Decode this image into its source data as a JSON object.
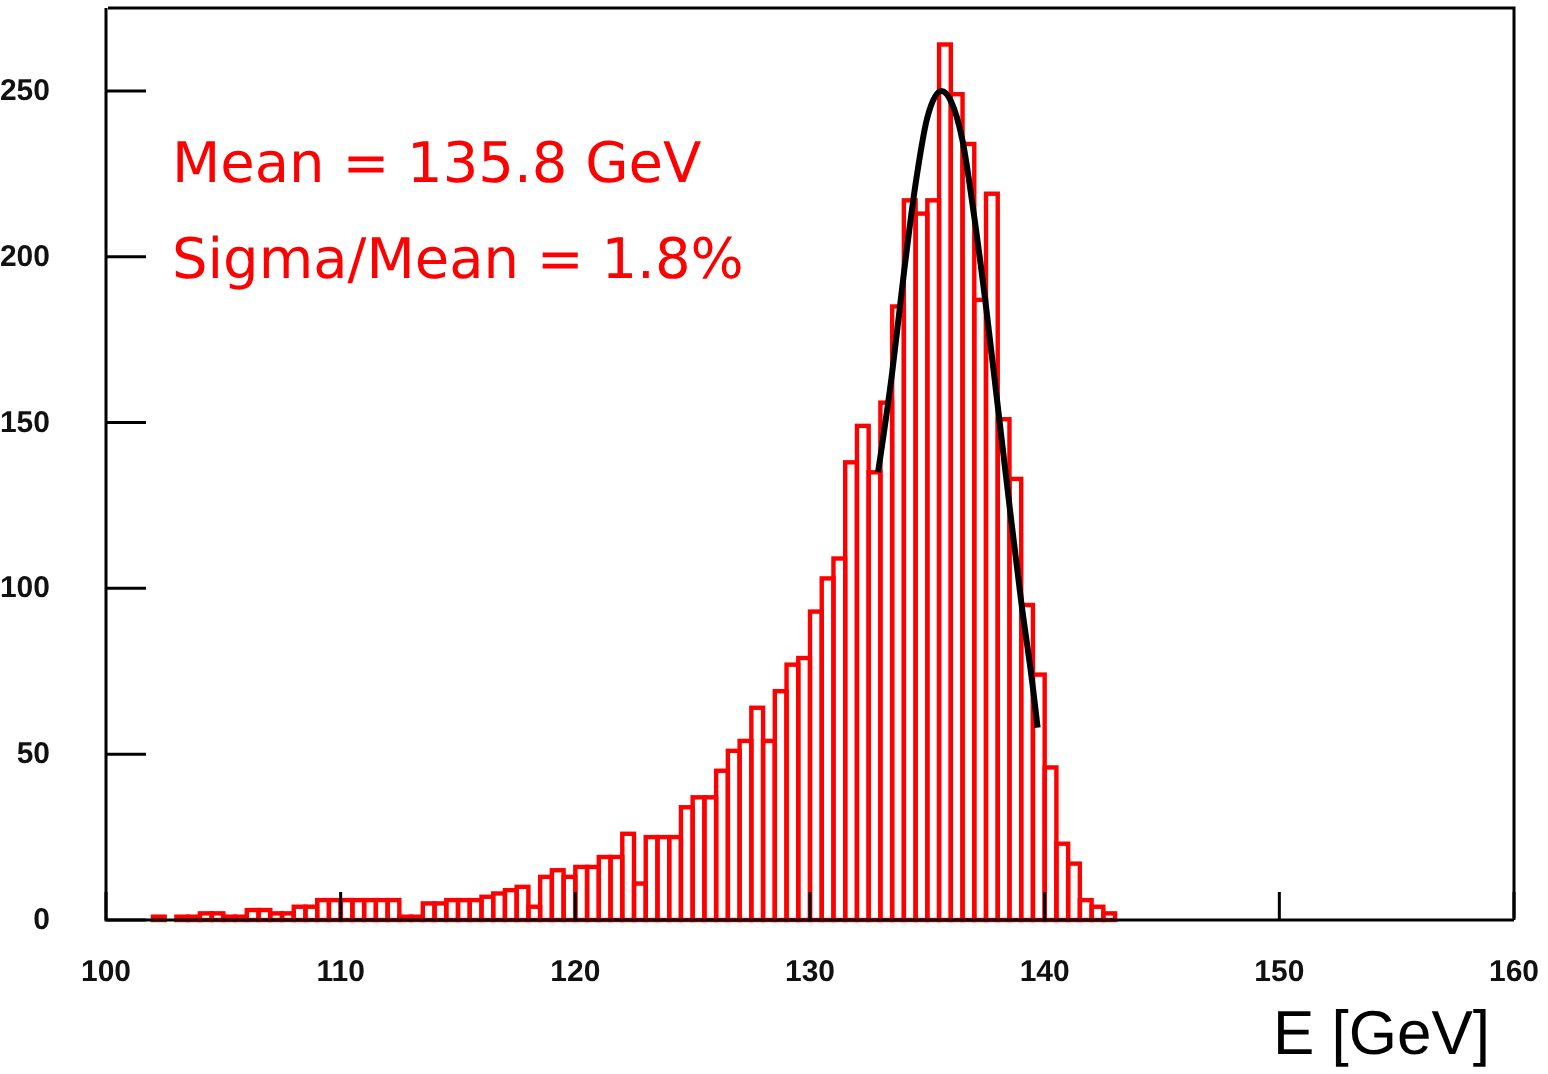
{
  "chart_data": {
    "type": "histogram",
    "xlabel": "E [GeV]",
    "annotations": [
      "Mean = 135.8 GeV",
      "Sigma/Mean = 1.8%"
    ],
    "bins": [
      100,
      100.5,
      101,
      101.5,
      102,
      102.5,
      103,
      103.5,
      104,
      104.5,
      105,
      105.5,
      106,
      106.5,
      107,
      107.5,
      108,
      108.5,
      109,
      109.5,
      110,
      110.5,
      111,
      111.5,
      112,
      112.5,
      113,
      113.5,
      114,
      114.5,
      115,
      115.5,
      116,
      116.5,
      117,
      117.5,
      118,
      118.5,
      119,
      119.5,
      120,
      120.5,
      121,
      121.5,
      122,
      122.5,
      123,
      123.5,
      124,
      124.5,
      125,
      125.5,
      126,
      126.5,
      127,
      127.5,
      128,
      128.5,
      129,
      129.5,
      130,
      130.5,
      131,
      131.5,
      132,
      132.5,
      133,
      133.5,
      134,
      134.5,
      135,
      135.5,
      136,
      136.5,
      137,
      137.5,
      138,
      138.5,
      139,
      139.5,
      140,
      140.5,
      141,
      141.5,
      142,
      142.5,
      143,
      143.5,
      144,
      144.5,
      145,
      145.5,
      146,
      146.5,
      147,
      147.5,
      148,
      148.5,
      149,
      149.5,
      150,
      150.5,
      151,
      151.5,
      152,
      152.5,
      153,
      153.5,
      154,
      154.5,
      155,
      155.5,
      156,
      156.5,
      157,
      157.5,
      158,
      158.5,
      159,
      159.5,
      160
    ],
    "series": [
      {
        "color": "#ff0000",
        "values": [
          0,
          0,
          0,
          0,
          1,
          0,
          1,
          1,
          2,
          2,
          1,
          1,
          3,
          3,
          2,
          2,
          4,
          4,
          6,
          6,
          6,
          6,
          6,
          6,
          6,
          1,
          1,
          5,
          5,
          6,
          6,
          6,
          7,
          8,
          9,
          10,
          4,
          13,
          15,
          13,
          16,
          16,
          19,
          19,
          26,
          11,
          25,
          25,
          25,
          34,
          37,
          37,
          45,
          51,
          54,
          64,
          54,
          69,
          77,
          79,
          93,
          103,
          109,
          138,
          149,
          135,
          156,
          185,
          217,
          213,
          217,
          264,
          249,
          234,
          187,
          219,
          151,
          133,
          95,
          74,
          46,
          23,
          17,
          6,
          4,
          2,
          0,
          0,
          0,
          0,
          0,
          0,
          0,
          0,
          0,
          0,
          0,
          0,
          0,
          0,
          0,
          0,
          0,
          0,
          0,
          0,
          0,
          0,
          0,
          0,
          0,
          0,
          0,
          0,
          0,
          0,
          0,
          0,
          0,
          0
        ]
      },
      {
        "type": "line",
        "color": "#000000",
        "x": [
          132.9,
          133.5,
          134,
          134.5,
          135,
          135.6,
          136,
          136.5,
          137,
          137.5,
          138,
          138.5,
          139,
          139.5,
          139.7
        ],
        "values": [
          135,
          165,
          195,
          222,
          242,
          250,
          247,
          235,
          212,
          185,
          155,
          125,
          96,
          70,
          58
        ]
      }
    ],
    "xlim": [
      100,
      160
    ],
    "xticks": [
      100,
      110,
      120,
      130,
      140,
      150,
      160
    ],
    "ylim": [
      0,
      275
    ],
    "yticks": [
      0,
      50,
      100,
      150,
      200,
      250
    ],
    "grid": false
  }
}
